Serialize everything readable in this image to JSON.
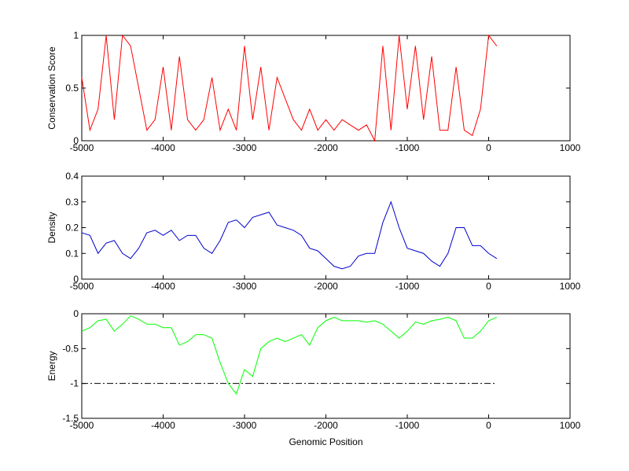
{
  "chart_data": [
    {
      "type": "line",
      "ylabel": "Conservation Score",
      "x": [
        -5000,
        -4900,
        -4800,
        -4700,
        -4600,
        -4500,
        -4400,
        -4300,
        -4200,
        -4100,
        -4000,
        -3900,
        -3800,
        -3700,
        -3600,
        -3500,
        -3400,
        -3300,
        -3200,
        -3100,
        -3000,
        -2900,
        -2800,
        -2700,
        -2600,
        -2500,
        -2400,
        -2300,
        -2200,
        -2100,
        -2000,
        -1900,
        -1800,
        -1700,
        -1600,
        -1500,
        -1400,
        -1300,
        -1200,
        -1100,
        -1000,
        -900,
        -800,
        -700,
        -600,
        -500,
        -400,
        -300,
        -200,
        -100,
        0,
        100
      ],
      "series": [
        {
          "color": "#ff0000",
          "values": [
            0.6,
            0.1,
            0.3,
            1,
            0.2,
            1,
            0.9,
            0.5,
            0.1,
            0.2,
            0.7,
            0.1,
            0.8,
            0.2,
            0.1,
            0.2,
            0.6,
            0.1,
            0.3,
            0.1,
            0.9,
            0.2,
            0.7,
            0.1,
            0.6,
            0.4,
            0.2,
            0.1,
            0.3,
            0.1,
            0.2,
            0.1,
            0.2,
            0.15,
            0.1,
            0.15,
            0,
            0.9,
            0.1,
            1,
            0.3,
            0.9,
            0.2,
            0.8,
            0.1,
            0.1,
            0.7,
            0.1,
            0.05,
            0.3,
            1,
            0.9
          ]
        }
      ],
      "xlim": [
        -5000,
        1000
      ],
      "xticks": [
        -5000,
        -4000,
        -3000,
        -2000,
        -1000,
        0,
        1000
      ],
      "ylim": [
        0,
        1
      ],
      "yticks": [
        0,
        0.5,
        1
      ]
    },
    {
      "type": "line",
      "ylabel": "Density",
      "x": [
        -5000,
        -4900,
        -4800,
        -4700,
        -4600,
        -4500,
        -4400,
        -4300,
        -4200,
        -4100,
        -4000,
        -3900,
        -3800,
        -3700,
        -3600,
        -3500,
        -3400,
        -3300,
        -3200,
        -3100,
        -3000,
        -2900,
        -2800,
        -2700,
        -2600,
        -2500,
        -2400,
        -2300,
        -2200,
        -2100,
        -2000,
        -1900,
        -1800,
        -1700,
        -1600,
        -1500,
        -1400,
        -1300,
        -1200,
        -1100,
        -1000,
        -900,
        -800,
        -700,
        -600,
        -500,
        -400,
        -300,
        -200,
        -100,
        0,
        100
      ],
      "series": [
        {
          "color": "#0000cc",
          "values": [
            0.18,
            0.17,
            0.1,
            0.14,
            0.15,
            0.1,
            0.08,
            0.12,
            0.18,
            0.19,
            0.17,
            0.19,
            0.15,
            0.17,
            0.17,
            0.12,
            0.1,
            0.15,
            0.22,
            0.23,
            0.2,
            0.24,
            0.25,
            0.26,
            0.21,
            0.2,
            0.19,
            0.17,
            0.12,
            0.11,
            0.08,
            0.05,
            0.04,
            0.05,
            0.09,
            0.1,
            0.1,
            0.22,
            0.3,
            0.2,
            0.12,
            0.11,
            0.1,
            0.07,
            0.05,
            0.1,
            0.2,
            0.2,
            0.13,
            0.13,
            0.1,
            0.08
          ]
        }
      ],
      "xlim": [
        -5000,
        1000
      ],
      "xticks": [
        -5000,
        -4000,
        -3000,
        -2000,
        -1000,
        0,
        1000
      ],
      "ylim": [
        0,
        0.4
      ],
      "yticks": [
        0,
        0.1,
        0.2,
        0.3,
        0.4
      ]
    },
    {
      "type": "line",
      "ylabel": "Energy",
      "xlabel": "Genomic Position",
      "x": [
        -5000,
        -4900,
        -4800,
        -4700,
        -4600,
        -4500,
        -4400,
        -4300,
        -4200,
        -4100,
        -4000,
        -3900,
        -3800,
        -3700,
        -3600,
        -3500,
        -3400,
        -3300,
        -3200,
        -3100,
        -3000,
        -2900,
        -2800,
        -2700,
        -2600,
        -2500,
        -2400,
        -2300,
        -2200,
        -2100,
        -2000,
        -1900,
        -1800,
        -1700,
        -1600,
        -1500,
        -1400,
        -1300,
        -1200,
        -1100,
        -1000,
        -900,
        -800,
        -700,
        -600,
        -500,
        -400,
        -300,
        -200,
        -100,
        0,
        100
      ],
      "series": [
        {
          "color": "#00ff00",
          "values": [
            -0.25,
            -0.2,
            -0.1,
            -0.08,
            -0.25,
            -0.15,
            -0.03,
            -0.08,
            -0.15,
            -0.15,
            -0.2,
            -0.2,
            -0.45,
            -0.4,
            -0.3,
            -0.3,
            -0.35,
            -0.7,
            -1.0,
            -1.15,
            -0.8,
            -0.9,
            -0.5,
            -0.4,
            -0.35,
            -0.4,
            -0.35,
            -0.3,
            -0.45,
            -0.2,
            -0.1,
            -0.05,
            -0.1,
            -0.1,
            -0.1,
            -0.12,
            -0.1,
            -0.15,
            -0.25,
            -0.35,
            -0.25,
            -0.12,
            -0.15,
            -0.1,
            -0.08,
            -0.05,
            -0.1,
            -0.35,
            -0.35,
            -0.25,
            -0.1,
            -0.05
          ]
        }
      ],
      "hline": -1,
      "xlim": [
        -5000,
        1000
      ],
      "xticks": [
        -5000,
        -4000,
        -3000,
        -2000,
        -1000,
        0,
        1000
      ],
      "ylim": [
        -1.5,
        0
      ],
      "yticks": [
        -1.5,
        -1,
        -0.5,
        0
      ]
    }
  ]
}
